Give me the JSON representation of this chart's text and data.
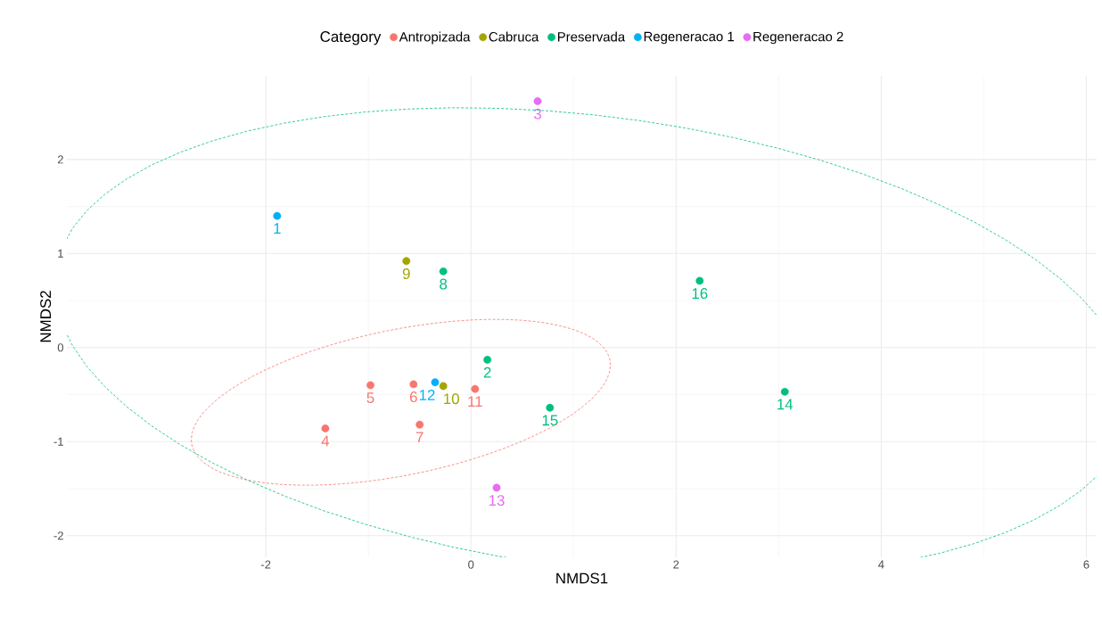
{
  "chart_data": {
    "type": "scatter",
    "xlabel": "NMDS1",
    "ylabel": "NMDS2",
    "legend_title": "Category",
    "legend": "top",
    "grid": true,
    "marker": "circle",
    "xlim": [
      -3.94,
      6.1
    ],
    "ylim": [
      -2.23,
      2.89
    ],
    "xticks": [
      -2,
      0,
      2,
      4,
      6
    ],
    "yticks": [
      -2,
      -1,
      0,
      1,
      2
    ],
    "series": [
      {
        "name": "Antropizada",
        "color": "#F8766D",
        "x": [
          -1.42,
          -0.98,
          -0.56,
          -0.5,
          0.04
        ],
        "values": [
          -0.86,
          -0.4,
          -0.39,
          -0.82,
          -0.44
        ]
      },
      {
        "name": "Cabruca",
        "color": "#A3A500",
        "x": [
          -0.63,
          -0.27
        ],
        "values": [
          0.92,
          -0.41
        ]
      },
      {
        "name": "Preservada",
        "color": "#00BF7D",
        "x": [
          0.16,
          -0.27,
          3.06,
          0.77,
          2.23
        ],
        "values": [
          -0.13,
          0.81,
          -0.47,
          -0.64,
          0.71
        ]
      },
      {
        "name": "Regeneracao 1",
        "color": "#00B0F6",
        "x": [
          -1.89,
          -0.35
        ],
        "values": [
          1.4,
          -0.37
        ]
      },
      {
        "name": "Regeneracao 2",
        "color": "#E76BF3",
        "x": [
          0.65,
          0.25
        ],
        "values": [
          2.62,
          -1.49
        ]
      }
    ],
    "annotations": [
      {
        "text": "4",
        "x": -1.42,
        "y": -0.86
      },
      {
        "text": "5",
        "x": -0.98,
        "y": -0.4
      },
      {
        "text": "6",
        "x": -0.56,
        "y": -0.39
      },
      {
        "text": "7",
        "x": -0.5,
        "y": -0.82
      },
      {
        "text": "11",
        "x": 0.04,
        "y": -0.44
      },
      {
        "text": "9",
        "x": -0.63,
        "y": 0.92
      },
      {
        "text": "10",
        "x": -0.27,
        "y": -0.41
      },
      {
        "text": "2",
        "x": 0.16,
        "y": -0.13
      },
      {
        "text": "8",
        "x": -0.27,
        "y": 0.81
      },
      {
        "text": "14",
        "x": 3.06,
        "y": -0.47
      },
      {
        "text": "15",
        "x": 0.77,
        "y": -0.64
      },
      {
        "text": "16",
        "x": 2.23,
        "y": 0.71
      },
      {
        "text": "1",
        "x": -1.89,
        "y": 1.4
      },
      {
        "text": "12",
        "x": -0.35,
        "y": -0.37
      },
      {
        "text": "3",
        "x": 0.65,
        "y": 2.62
      },
      {
        "text": "13",
        "x": 0.25,
        "y": -1.49
      }
    ]
  }
}
